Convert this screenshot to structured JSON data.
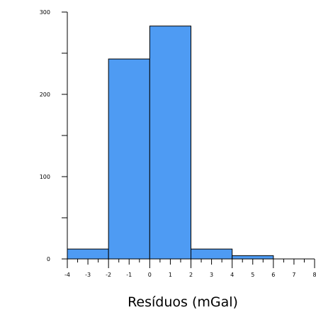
{
  "chart_data": {
    "type": "bar",
    "title": "",
    "xlabel": "Resíduos (mGal)",
    "ylabel": "",
    "xlim": [
      -4,
      8
    ],
    "ylim": [
      0,
      300
    ],
    "bin_width": 2,
    "bins": [
      {
        "x0": -4,
        "x1": -2,
        "value": 12
      },
      {
        "x0": -2,
        "x1": 0,
        "value": 243
      },
      {
        "x0": 0,
        "x1": 2,
        "value": 283
      },
      {
        "x0": 2,
        "x1": 4,
        "value": 12
      },
      {
        "x0": 4,
        "x1": 6,
        "value": 4
      },
      {
        "x0": 6,
        "x1": 8,
        "value": 0
      }
    ],
    "x_ticks": [
      "-4",
      "-3",
      "-2",
      "-1",
      "0",
      "1",
      "2",
      "3",
      "4",
      "5",
      "6",
      "7",
      "8"
    ],
    "y_ticks": [
      "0",
      "100",
      "200",
      "300"
    ],
    "bar_color": "#4e9bf3",
    "grid": false,
    "legend": "none"
  }
}
